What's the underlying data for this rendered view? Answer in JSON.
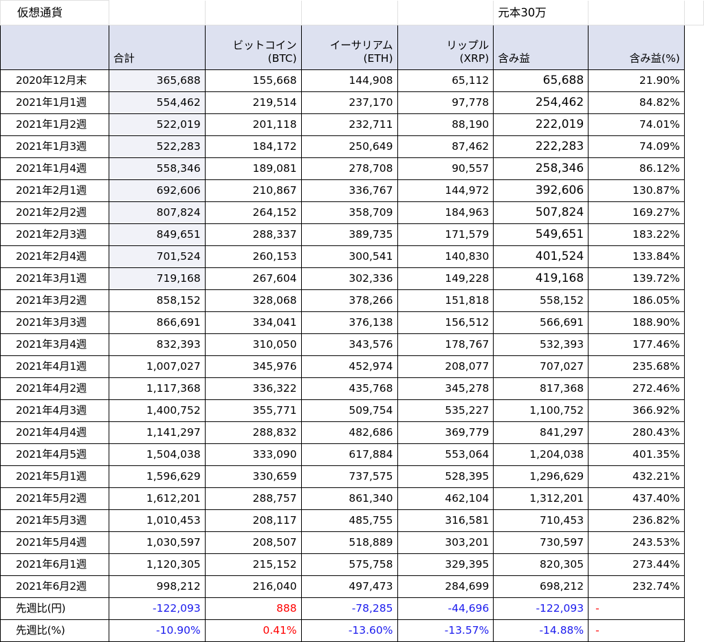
{
  "sheet": {
    "title": "仮想通貨",
    "principal_note": "元本30万",
    "headers": {
      "total": "合計",
      "btc_line1": "ビットコイン",
      "btc_line2": "(BTC)",
      "eth_line1": "イーサリアム",
      "eth_line2": "(ETH)",
      "xrp_line1": "リップル",
      "xrp_line2": "(XRP)",
      "profit": "含み益",
      "profit_pct": "含み益(%)"
    },
    "rows": [
      {
        "label": "2020年12月末",
        "total": "365,688",
        "btc": "155,668",
        "eth": "144,908",
        "xrp": "65,112",
        "profit": "65,688",
        "pct": "21.90%"
      },
      {
        "label": "2021年1月1週",
        "total": "554,462",
        "btc": "219,514",
        "eth": "237,170",
        "xrp": "97,778",
        "profit": "254,462",
        "pct": "84.82%"
      },
      {
        "label": "2021年1月2週",
        "total": "522,019",
        "btc": "201,118",
        "eth": "232,711",
        "xrp": "88,190",
        "profit": "222,019",
        "pct": "74.01%"
      },
      {
        "label": "2021年1月3週",
        "total": "522,283",
        "btc": "184,172",
        "eth": "250,649",
        "xrp": "87,462",
        "profit": "222,283",
        "pct": "74.09%"
      },
      {
        "label": "2021年1月4週",
        "total": "558,346",
        "btc": "189,081",
        "eth": "278,708",
        "xrp": "90,557",
        "profit": "258,346",
        "pct": "86.12%"
      },
      {
        "label": "2021年2月1週",
        "total": "692,606",
        "btc": "210,867",
        "eth": "336,767",
        "xrp": "144,972",
        "profit": "392,606",
        "pct": "130.87%"
      },
      {
        "label": "2021年2月2週",
        "total": "807,824",
        "btc": "264,152",
        "eth": "358,709",
        "xrp": "184,963",
        "profit": "507,824",
        "pct": "169.27%"
      },
      {
        "label": "2021年2月3週",
        "total": "849,651",
        "btc": "288,337",
        "eth": "389,735",
        "xrp": "171,579",
        "profit": "549,651",
        "pct": "183.22%"
      },
      {
        "label": "2021年2月4週",
        "total": "701,524",
        "btc": "260,153",
        "eth": "300,541",
        "xrp": "140,830",
        "profit": "401,524",
        "pct": "133.84%"
      },
      {
        "label": "2021年3月1週",
        "total": "719,168",
        "btc": "267,604",
        "eth": "302,336",
        "xrp": "149,228",
        "profit": "419,168",
        "pct": "139.72%"
      },
      {
        "label": "2021年3月2週",
        "total": "858,152",
        "btc": "328,068",
        "eth": "378,266",
        "xrp": "151,818",
        "profit": "558,152",
        "pct": "186.05%"
      },
      {
        "label": "2021年3月3週",
        "total": "866,691",
        "btc": "334,041",
        "eth": "376,138",
        "xrp": "156,512",
        "profit": "566,691",
        "pct": "188.90%"
      },
      {
        "label": "2021年3月4週",
        "total": "832,393",
        "btc": "310,050",
        "eth": "343,576",
        "xrp": "178,767",
        "profit": "532,393",
        "pct": "177.46%"
      },
      {
        "label": "2021年4月1週",
        "total": "1,007,027",
        "btc": "345,976",
        "eth": "452,974",
        "xrp": "208,077",
        "profit": "707,027",
        "pct": "235.68%"
      },
      {
        "label": "2021年4月2週",
        "total": "1,117,368",
        "btc": "336,322",
        "eth": "435,768",
        "xrp": "345,278",
        "profit": "817,368",
        "pct": "272.46%"
      },
      {
        "label": "2021年4月3週",
        "total": "1,400,752",
        "btc": "355,771",
        "eth": "509,754",
        "xrp": "535,227",
        "profit": "1,100,752",
        "pct": "366.92%"
      },
      {
        "label": "2021年4月4週",
        "total": "1,141,297",
        "btc": "288,832",
        "eth": "482,686",
        "xrp": "369,779",
        "profit": "841,297",
        "pct": "280.43%"
      },
      {
        "label": "2021年4月5週",
        "total": "1,504,038",
        "btc": "333,090",
        "eth": "617,884",
        "xrp": "553,064",
        "profit": "1,204,038",
        "pct": "401.35%"
      },
      {
        "label": "2021年5月1週",
        "total": "1,596,629",
        "btc": "330,659",
        "eth": "737,575",
        "xrp": "528,395",
        "profit": "1,296,629",
        "pct": "432.21%"
      },
      {
        "label": "2021年5月2週",
        "total": "1,612,201",
        "btc": "288,757",
        "eth": "861,340",
        "xrp": "462,104",
        "profit": "1,312,201",
        "pct": "437.40%"
      },
      {
        "label": "2021年5月3週",
        "total": "1,010,453",
        "btc": "208,117",
        "eth": "485,755",
        "xrp": "316,581",
        "profit": "710,453",
        "pct": "236.82%"
      },
      {
        "label": "2021年5月4週",
        "total": "1,030,597",
        "btc": "208,507",
        "eth": "518,889",
        "xrp": "303,201",
        "profit": "730,597",
        "pct": "243.53%"
      },
      {
        "label": "2021年6月1週",
        "total": "1,120,305",
        "btc": "215,152",
        "eth": "575,758",
        "xrp": "329,395",
        "profit": "820,305",
        "pct": "273.44%"
      },
      {
        "label": "2021年6月2週",
        "total": "998,212",
        "btc": "216,040",
        "eth": "497,473",
        "xrp": "284,699",
        "profit": "698,212",
        "pct": "232.74%"
      }
    ],
    "wow_yen": {
      "label": "先週比(円)",
      "total": "-122,093",
      "btc": "888",
      "eth": "-78,285",
      "xrp": "-44,696",
      "profit": "-122,093",
      "pct": "-"
    },
    "wow_pct": {
      "label": "先週比(%)",
      "total": "-10.90%",
      "btc": "0.41%",
      "eth": "-13.60%",
      "xrp": "-13.57%",
      "profit": "-14.88%",
      "pct": "-"
    },
    "colors": {
      "header_bg": "#dde1f0",
      "shade_bg": "#f1f2f8",
      "negative": "#1a1aee",
      "positive": "#ff0000"
    }
  }
}
